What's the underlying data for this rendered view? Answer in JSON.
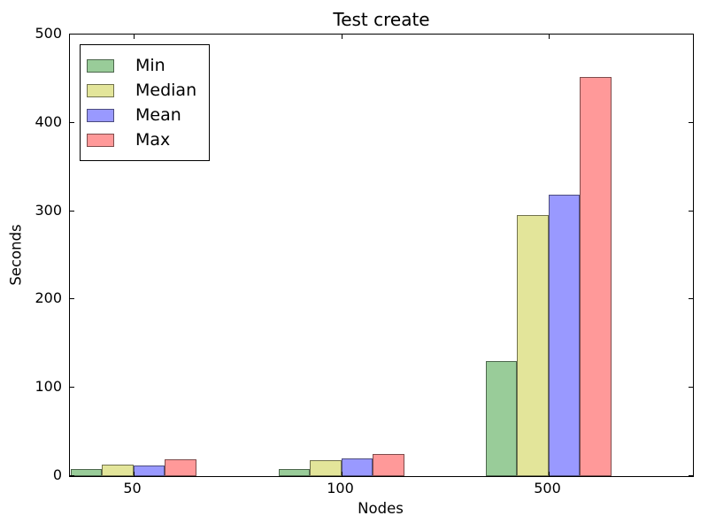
{
  "window": {
    "title": "Test create"
  },
  "chart_data": {
    "type": "bar",
    "title": "Test create",
    "xlabel": "Nodes",
    "ylabel": "Seconds",
    "categories": [
      "50",
      "100",
      "500"
    ],
    "series": [
      {
        "name": "Min",
        "color": "#99CC99",
        "values": [
          8,
          8,
          130
        ]
      },
      {
        "name": "Median",
        "color": "#E3E59A",
        "values": [
          13,
          18,
          296
        ]
      },
      {
        "name": "Mean",
        "color": "#9999FF",
        "values": [
          12,
          20,
          319
        ]
      },
      {
        "name": "Max",
        "color": "#FF9999",
        "values": [
          19,
          25,
          452
        ]
      }
    ],
    "bar_edge_color": "rgba(0,0,0,0.5)",
    "axis_color": "#000000",
    "background_color": "#ffffff",
    "ylim": [
      0,
      500
    ],
    "yticks": [
      0,
      100,
      200,
      300,
      400,
      500
    ],
    "grid": false,
    "legend_position": "upper left",
    "tick_direction": "in",
    "ticks_on_all_sides": true
  }
}
